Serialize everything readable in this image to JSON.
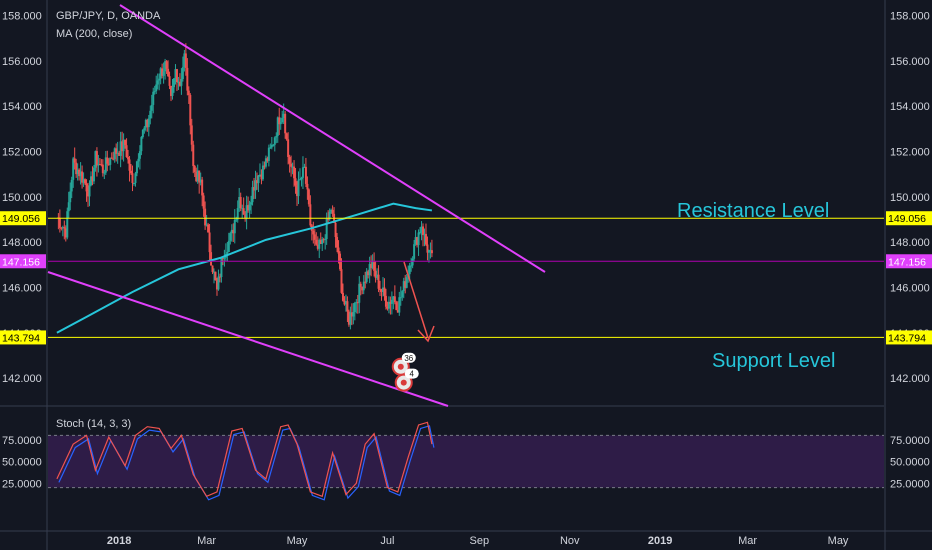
{
  "chart_data": {
    "type": "candlestick",
    "symbol": "GBP/JPY, D, OANDA",
    "indicator_ma": "MA (200, close)",
    "indicator_stoch": "Stoch (14, 3, 3)",
    "price_axis_ticks": [
      "158.000",
      "156.000",
      "154.000",
      "152.000",
      "150.000",
      "148.000",
      "146.000",
      "144.000",
      "142.000"
    ],
    "price_axis_values": [
      158,
      156,
      154,
      152,
      150,
      148,
      146,
      144,
      142
    ],
    "stoch_axis_ticks": [
      "75.0000",
      "50.0000",
      "25.0000"
    ],
    "stoch_axis_values": [
      75,
      50,
      25
    ],
    "stoch_band": [
      20,
      80
    ],
    "time_axis": [
      "2018",
      "Mar",
      "May",
      "Jul",
      "Sep",
      "Nov",
      "2019",
      "Mar",
      "May"
    ],
    "ylim": [
      140.9,
      158.6
    ],
    "close_points": [
      [
        "2017-11-20",
        149.1
      ],
      [
        "2017-11-26",
        148.5
      ],
      [
        "2017-12-01",
        151.5
      ],
      [
        "2017-12-06",
        151.0
      ],
      [
        "2017-12-12",
        150.2
      ],
      [
        "2017-12-16",
        151.7
      ],
      [
        "2017-12-21",
        151.2
      ],
      [
        "2017-12-28",
        151.9
      ],
      [
        "2018-01-05",
        152.3
      ],
      [
        "2018-01-10",
        150.5
      ],
      [
        "2018-01-16",
        152.7
      ],
      [
        "2018-01-20",
        153.2
      ],
      [
        "2018-01-27",
        155.3
      ],
      [
        "2018-02-01",
        155.8
      ],
      [
        "2018-02-05",
        154.2
      ],
      [
        "2018-02-08",
        155.6
      ],
      [
        "2018-02-11",
        155.0
      ],
      [
        "2018-02-14",
        156.2
      ],
      [
        "2018-02-18",
        153.5
      ],
      [
        "2018-02-20",
        151.3
      ],
      [
        "2018-02-25",
        150.5
      ],
      [
        "2018-02-28",
        149.0
      ],
      [
        "2018-03-04",
        147.3
      ],
      [
        "2018-03-08",
        145.8
      ],
      [
        "2018-03-12",
        147.5
      ],
      [
        "2018-03-18",
        148.3
      ],
      [
        "2018-03-23",
        150.0
      ],
      [
        "2018-03-27",
        149.2
      ],
      [
        "2018-04-03",
        150.8
      ],
      [
        "2018-04-08",
        151.2
      ],
      [
        "2018-04-14",
        152.2
      ],
      [
        "2018-04-19",
        153.5
      ],
      [
        "2018-04-22",
        153.8
      ],
      [
        "2018-04-25",
        151.8
      ],
      [
        "2018-05-01",
        150.3
      ],
      [
        "2018-05-06",
        151.2
      ],
      [
        "2018-05-10",
        148.8
      ],
      [
        "2018-05-14",
        147.6
      ],
      [
        "2018-05-18",
        147.9
      ],
      [
        "2018-05-24",
        149.5
      ],
      [
        "2018-05-28",
        147.8
      ],
      [
        "2018-06-01",
        145.5
      ],
      [
        "2018-06-05",
        144.6
      ],
      [
        "2018-06-09",
        145.3
      ],
      [
        "2018-06-14",
        146.2
      ],
      [
        "2018-06-20",
        147.0
      ],
      [
        "2018-06-26",
        146.0
      ],
      [
        "2018-07-01",
        145.3
      ],
      [
        "2018-07-05",
        145.6
      ],
      [
        "2018-07-08",
        145.2
      ],
      [
        "2018-07-12",
        146.0
      ],
      [
        "2018-07-17",
        147.3
      ],
      [
        "2018-07-21",
        148.2
      ],
      [
        "2018-07-24",
        148.8
      ],
      [
        "2018-07-27",
        147.9
      ],
      [
        "2018-07-31",
        147.2
      ]
    ],
    "ma200_points": [
      [
        "2017-11-20",
        144.0
      ],
      [
        "2017-12-10",
        144.7
      ],
      [
        "2018-01-10",
        145.8
      ],
      [
        "2018-02-10",
        146.8
      ],
      [
        "2018-03-10",
        147.3
      ],
      [
        "2018-04-10",
        148.1
      ],
      [
        "2018-05-10",
        148.6
      ],
      [
        "2018-06-10",
        149.2
      ],
      [
        "2018-07-05",
        149.7
      ],
      [
        "2018-07-20",
        149.5
      ],
      [
        "2018-07-31",
        149.4
      ]
    ],
    "stoch_points": [
      [
        "2017-11-20",
        30
      ],
      [
        "2017-12-01",
        70
      ],
      [
        "2017-12-10",
        80
      ],
      [
        "2017-12-16",
        40
      ],
      [
        "2017-12-25",
        78
      ],
      [
        "2018-01-05",
        45
      ],
      [
        "2018-01-12",
        80
      ],
      [
        "2018-01-20",
        90
      ],
      [
        "2018-01-28",
        88
      ],
      [
        "2018-02-05",
        65
      ],
      [
        "2018-02-12",
        80
      ],
      [
        "2018-02-20",
        35
      ],
      [
        "2018-03-01",
        10
      ],
      [
        "2018-03-08",
        15
      ],
      [
        "2018-03-18",
        85
      ],
      [
        "2018-03-25",
        88
      ],
      [
        "2018-04-03",
        40
      ],
      [
        "2018-04-10",
        30
      ],
      [
        "2018-04-20",
        90
      ],
      [
        "2018-04-25",
        92
      ],
      [
        "2018-05-01",
        70
      ],
      [
        "2018-05-10",
        15
      ],
      [
        "2018-05-18",
        10
      ],
      [
        "2018-05-25",
        60
      ],
      [
        "2018-06-03",
        12
      ],
      [
        "2018-06-10",
        25
      ],
      [
        "2018-06-16",
        70
      ],
      [
        "2018-06-22",
        82
      ],
      [
        "2018-07-01",
        20
      ],
      [
        "2018-07-08",
        15
      ],
      [
        "2018-07-15",
        55
      ],
      [
        "2018-07-22",
        92
      ],
      [
        "2018-07-28",
        95
      ],
      [
        "2018-07-31",
        70
      ]
    ]
  },
  "lines": {
    "resistance": {
      "value": 149.056,
      "label": "149.056"
    },
    "support": {
      "value": 143.794,
      "label": "143.794"
    },
    "last_price": {
      "value": 147.156,
      "label": "147.156"
    }
  },
  "annotations": {
    "resistance": "Resistance Level",
    "support": "Support Level"
  },
  "events": [
    {
      "date": "2018-07-10",
      "price": 142.5,
      "count": "36"
    },
    {
      "date": "2018-07-12",
      "price": 141.8,
      "count": "4"
    }
  ],
  "colors": {
    "background": "#131722",
    "up": "#26a69a",
    "down": "#ef5350",
    "ma": "#26c6da",
    "trendline": "#e040fb",
    "level": "#ffff00",
    "last_price": "#b000b0",
    "stoch_band": "#2e1c47",
    "stoch_k": "#ef5350",
    "stoch_d": "#2962ff",
    "arrow": "#ef5350"
  }
}
